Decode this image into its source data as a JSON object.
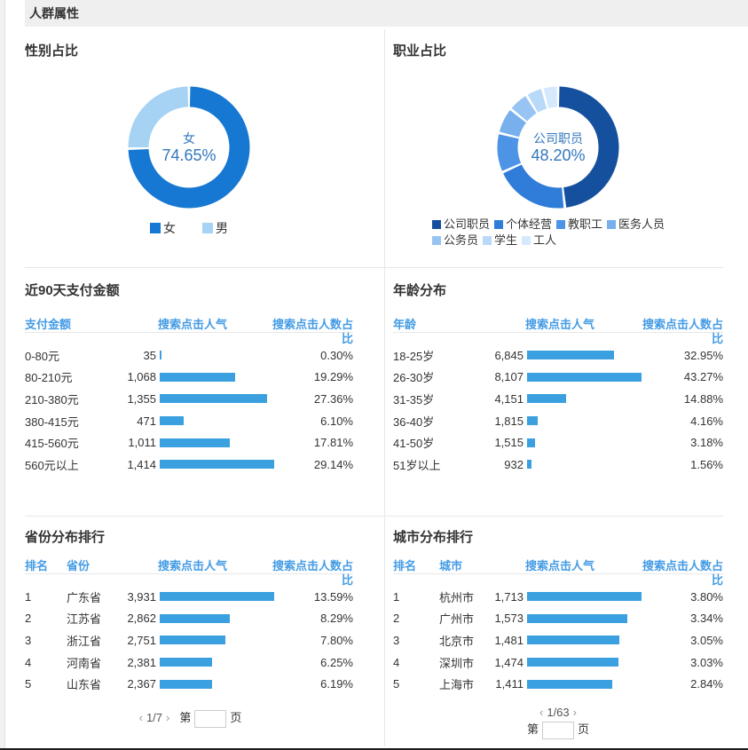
{
  "colors": {
    "bar": "#3AA0DF",
    "table-header-text": "#449BE4",
    "section-bar-bg": "#EFEFEF",
    "divider": "#E7E7E7",
    "bottom-border": "#1C1C1C",
    "donut-center-text": "#3377BD",
    "text-primary": "#333333",
    "page-strip": "#F1F1F1"
  },
  "header": {
    "title": "人群属性"
  },
  "chart_data": [
    {
      "id": "gender",
      "type": "pie",
      "title": "性别占比",
      "center": {
        "label": "女",
        "value": "74.65%"
      },
      "legend_position": "bottom",
      "segments": [
        {
          "label": "女",
          "pct": 74.65,
          "color": "#1678D2"
        },
        {
          "label": "男",
          "pct": 25.35,
          "color": "#A6D2F4"
        }
      ]
    },
    {
      "id": "occupation",
      "type": "pie",
      "title": "职业占比",
      "center": {
        "label": "公司职员",
        "value": "48.20%"
      },
      "legend_position": "bottom",
      "segments": [
        {
          "label": "公司职员",
          "pct": 48.2,
          "color": "#15509E"
        },
        {
          "label": "个体经营",
          "pct": 20.1,
          "color": "#2F7CD9"
        },
        {
          "label": "教职工",
          "pct": 10.5,
          "color": "#4D93E6"
        },
        {
          "label": "医务人员",
          "pct": 7.0,
          "color": "#78AFED"
        },
        {
          "label": "公务员",
          "pct": 5.5,
          "color": "#97C4F2"
        },
        {
          "label": "学生",
          "pct": 4.5,
          "color": "#B9D9F8"
        },
        {
          "label": "工人",
          "pct": 4.2,
          "color": "#D6E9FC"
        }
      ]
    },
    {
      "id": "payment",
      "type": "table",
      "title": "近90天支付金额",
      "headers": [
        "支付金额",
        "搜索点击人气",
        "搜索点击人数占比"
      ],
      "rows": [
        {
          "label": "0-80元",
          "value": "35",
          "pct": "0.30%"
        },
        {
          "label": "80-210元",
          "value": "1,068",
          "pct": "19.29%"
        },
        {
          "label": "210-380元",
          "value": "1,355",
          "pct": "27.36%"
        },
        {
          "label": "380-415元",
          "value": "471",
          "pct": "6.10%"
        },
        {
          "label": "415-560元",
          "value": "1,011",
          "pct": "17.81%"
        },
        {
          "label": "560元以上",
          "value": "1,414",
          "pct": "29.14%"
        }
      ]
    },
    {
      "id": "age",
      "type": "table",
      "title": "年龄分布",
      "headers": [
        "年龄",
        "搜索点击人气",
        "搜索点击人数占比"
      ],
      "rows": [
        {
          "label": "18-25岁",
          "value": "6,845",
          "pct": "32.95%"
        },
        {
          "label": "26-30岁",
          "value": "8,107",
          "pct": "43.27%"
        },
        {
          "label": "31-35岁",
          "value": "4,151",
          "pct": "14.88%"
        },
        {
          "label": "36-40岁",
          "value": "1,815",
          "pct": "4.16%"
        },
        {
          "label": "41-50岁",
          "value": "1,515",
          "pct": "3.18%"
        },
        {
          "label": "51岁以上",
          "value": "932",
          "pct": "1.56%"
        }
      ]
    },
    {
      "id": "province",
      "type": "table",
      "title": "省份分布排行",
      "headers": [
        "排名",
        "省份",
        "搜索点击人气",
        "搜索点击人数占比"
      ],
      "rows": [
        {
          "rank": "1",
          "label": "广东省",
          "value": "3,931",
          "pct": "13.59%"
        },
        {
          "rank": "2",
          "label": "江苏省",
          "value": "2,862",
          "pct": "8.29%"
        },
        {
          "rank": "3",
          "label": "浙江省",
          "value": "2,751",
          "pct": "7.80%"
        },
        {
          "rank": "4",
          "label": "河南省",
          "value": "2,381",
          "pct": "6.25%"
        },
        {
          "rank": "5",
          "label": "山东省",
          "value": "2,367",
          "pct": "6.19%"
        }
      ],
      "pagination": {
        "prev": "‹",
        "info": "1/7",
        "next": "›",
        "jump_prefix": "第",
        "jump_suffix": "页",
        "layout": "inline"
      }
    },
    {
      "id": "city",
      "type": "table",
      "title": "城市分布排行",
      "headers": [
        "排名",
        "城市",
        "搜索点击人气",
        "搜索点击人数占比"
      ],
      "rows": [
        {
          "rank": "1",
          "label": "杭州市",
          "value": "1,713",
          "pct": "3.80%"
        },
        {
          "rank": "2",
          "label": "广州市",
          "value": "1,573",
          "pct": "3.34%"
        },
        {
          "rank": "3",
          "label": "北京市",
          "value": "1,481",
          "pct": "3.05%"
        },
        {
          "rank": "4",
          "label": "深圳市",
          "value": "1,474",
          "pct": "3.03%"
        },
        {
          "rank": "5",
          "label": "上海市",
          "value": "1,411",
          "pct": "2.84%"
        }
      ],
      "pagination": {
        "prev": "‹",
        "info": "1/63",
        "next": "›",
        "jump_prefix": "第",
        "jump_suffix": "页",
        "layout": "stacked"
      }
    }
  ]
}
